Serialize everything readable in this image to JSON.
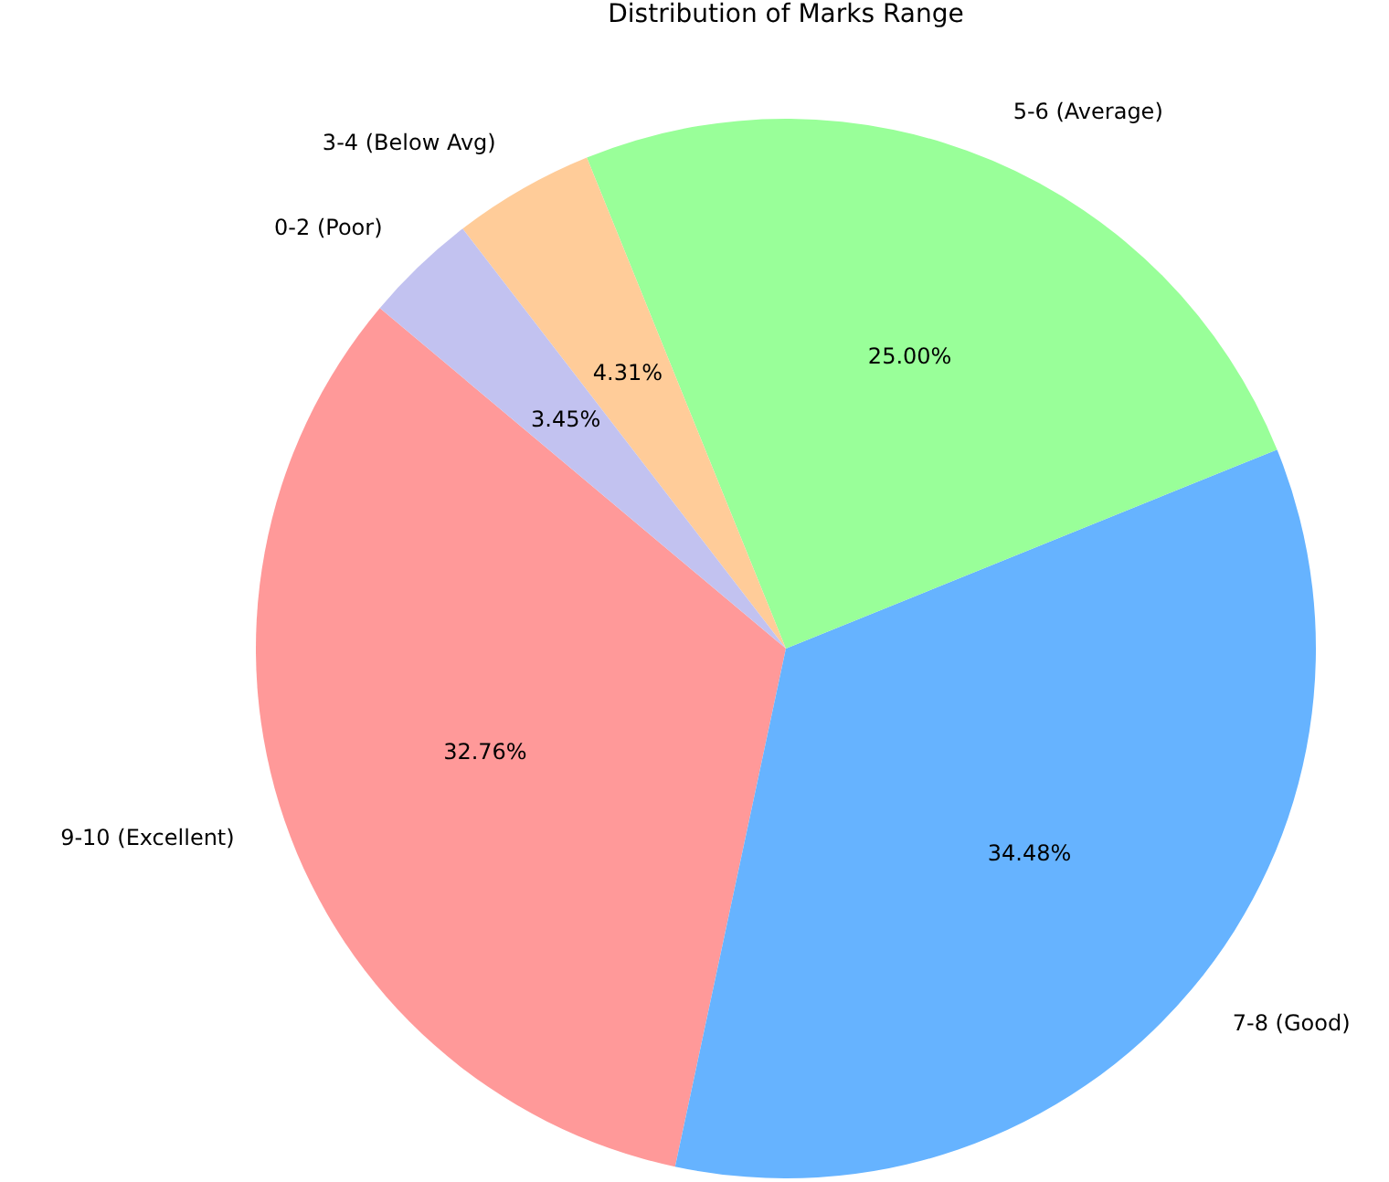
{
  "chart_data": {
    "type": "pie",
    "title": "Distribution of Marks Range",
    "categories": [
      "9-10 (Excellent)",
      "7-8 (Good)",
      "5-6 (Average)",
      "3-4 (Below Avg)",
      "0-2 (Poor)"
    ],
    "values": [
      32.76,
      34.48,
      25.0,
      4.31,
      3.45
    ],
    "value_labels": [
      "32.76%",
      "34.48%",
      "25.00%",
      "4.31%",
      "3.45%"
    ],
    "colors": [
      "#ff9999",
      "#66b3ff",
      "#99ff99",
      "#ffcc99",
      "#c2c2f0"
    ],
    "legend": false
  }
}
